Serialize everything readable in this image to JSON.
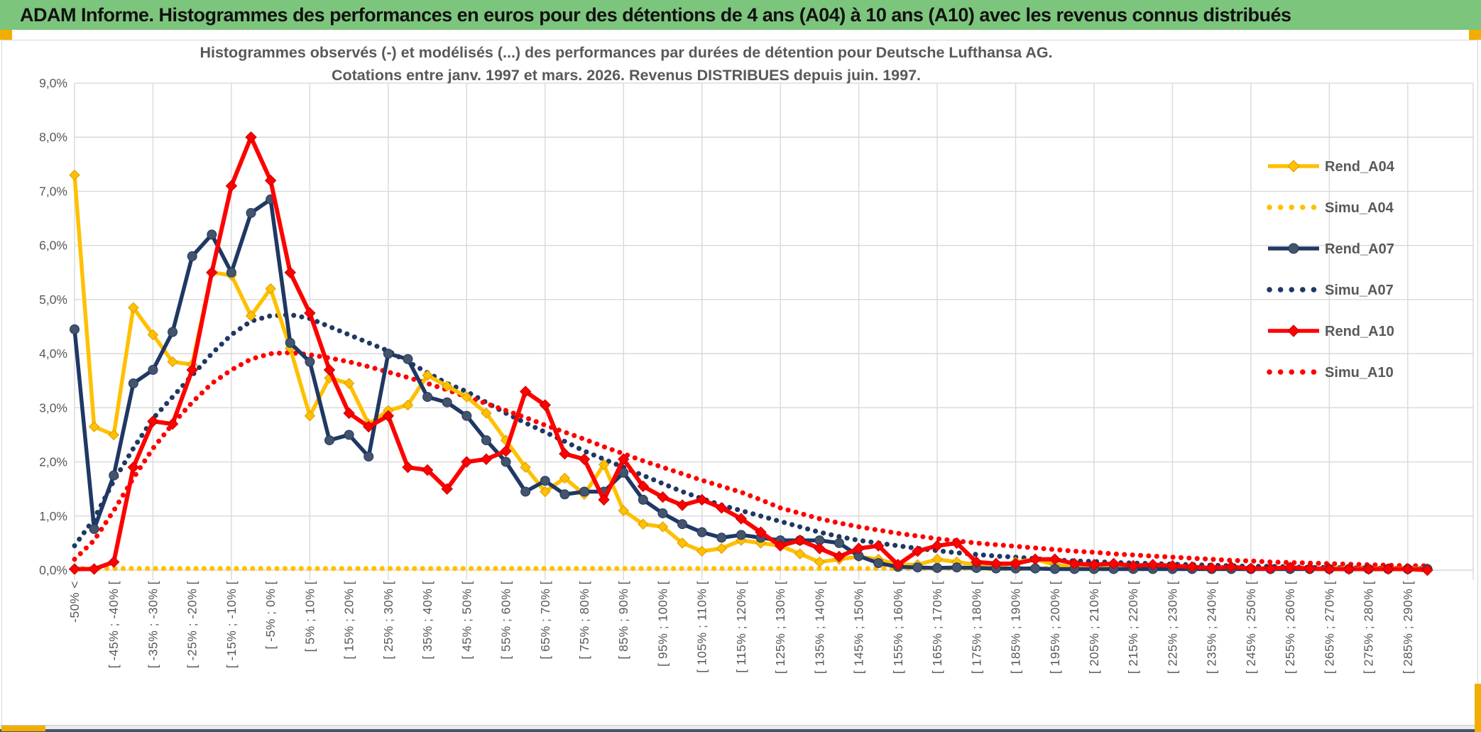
{
  "window": {
    "title": "ADAM Informe. Histogrammes des performances en euros pour des détentions de 4 ans (A04) à 10 ans (A10) avec les revenus connus distribués",
    "header_color": "#7CC57C",
    "accent_gold": "#F2AE00",
    "footer_color": "#44546A"
  },
  "chart_data": {
    "type": "line",
    "title_line1": "Histogrammes observés (-) et modélisés (...) des performances par durées de détention pour Deutsche Lufthansa AG.",
    "title_line2": "Cotations entre janv. 1997 et mars. 2026. Revenus DISTRIBUES depuis juin. 1997.",
    "ylabel": "",
    "xlabel": "",
    "ylim": [
      0,
      9
    ],
    "grid": true,
    "legend_position": "right",
    "y_ticks": [
      "0,0%",
      "1,0%",
      "2,0%",
      "3,0%",
      "4,0%",
      "5,0%",
      "6,0%",
      "7,0%",
      "8,0%",
      "9,0%"
    ],
    "x_tick_labels": [
      "-50% <",
      "[ -45% ; -40% [",
      "[ -35% ; -30% [",
      "[ -25% ; -20% [",
      "[ -15% ; -10% [",
      "[ -5% ; 0% [",
      "[ 5% ; 10% [",
      "[ 15% ; 20% [",
      "[ 25% ; 30% [",
      "[ 35% ; 40% [",
      "[ 45% ; 50% [",
      "[ 55% ; 60% [",
      "[ 65% ; 70% [",
      "[ 75% ; 80% [",
      "[ 85% ; 90% [",
      "[ 95% ; 100% [",
      "[ 105% ; 110% [",
      "[ 115% ; 120% [",
      "[ 125% ; 130% [",
      "[ 135% ; 140% [",
      "[ 145% ; 150% [",
      "[ 155% ; 160% [",
      "[ 165% ; 170% [",
      "[ 175% ; 180% [",
      "[ 185% ; 190% [",
      "[ 195% ; 200% [",
      "[ 205% ; 210% [",
      "[ 215% ; 220% [",
      "[ 225% ; 230% [",
      "[ 235% ; 240% [",
      "[ 245% ; 250% [",
      "[ 255% ; 260% [",
      "[ 265% ; 270% [",
      "[ 275% ; 280% [",
      "[ 285% ; 290% ["
    ],
    "x_tick_step": 2,
    "grid_color": "#D9D9D9",
    "text_color": "#595959",
    "series": [
      {
        "name": "Rend_A04",
        "color": "#FFC000",
        "style": "solid",
        "marker": "diamond",
        "marker_fill": "#FFC000",
        "marker_stroke": "#DA9B00",
        "values": [
          7.3,
          2.65,
          2.5,
          4.85,
          4.35,
          3.85,
          3.8,
          5.5,
          5.45,
          4.7,
          5.2,
          4.1,
          2.85,
          3.55,
          3.45,
          2.7,
          2.95,
          3.05,
          3.6,
          3.4,
          3.2,
          2.9,
          2.4,
          1.9,
          1.45,
          1.7,
          1.4,
          1.95,
          1.1,
          0.85,
          0.8,
          0.5,
          0.35,
          0.4,
          0.55,
          0.5,
          0.45,
          0.3,
          0.15,
          0.2,
          0.25,
          0.2,
          0.1,
          0.1,
          0.2,
          0.15,
          0.1,
          0.05,
          0.15,
          0.2,
          0.1,
          0.05,
          0.05,
          0.05,
          0.05,
          0.05,
          0.03,
          0.03,
          0.03,
          0.03,
          0.03,
          0.03,
          0.03,
          0.03,
          0.03,
          0.03,
          0.03,
          0.03,
          0.03,
          0.03
        ]
      },
      {
        "name": "Simu_A04",
        "color": "#FFC000",
        "style": "dotted",
        "marker": "none",
        "values": [
          0.03,
          0.03,
          0.03,
          0.03,
          0.03,
          0.03,
          0.03,
          0.03,
          0.03,
          0.03,
          0.03,
          0.03,
          0.03,
          0.03,
          0.03,
          0.03,
          0.03,
          0.03,
          0.03,
          0.03,
          0.03,
          0.03,
          0.03,
          0.03,
          0.03,
          0.03,
          0.03,
          0.03,
          0.03,
          0.03,
          0.03,
          0.03,
          0.03,
          0.03,
          0.03,
          0.03,
          0.03,
          0.03,
          0.03,
          0.03,
          0.03,
          0.03,
          0.03,
          0.03,
          0.03,
          0.03,
          0.03,
          0.03,
          0.03,
          0.03,
          0.03,
          0.03,
          0.03,
          0.03,
          0.03,
          0.03,
          0.03,
          0.03,
          0.03,
          0.03,
          0.03,
          0.03,
          0.03,
          0.03,
          0.03,
          0.03,
          0.03,
          0.03,
          0.03,
          0.03
        ]
      },
      {
        "name": "Rend_A07",
        "color": "#1F3864",
        "style": "solid",
        "marker": "circle",
        "marker_fill": "#44546A",
        "marker_stroke": "#1F3864",
        "values": [
          4.45,
          0.76,
          1.75,
          3.45,
          3.7,
          4.4,
          5.8,
          6.2,
          5.5,
          6.6,
          6.85,
          4.2,
          3.85,
          2.4,
          2.5,
          2.1,
          4.0,
          3.9,
          3.2,
          3.1,
          2.85,
          2.4,
          2.0,
          1.45,
          1.65,
          1.4,
          1.45,
          1.45,
          1.8,
          1.3,
          1.05,
          0.85,
          0.7,
          0.6,
          0.65,
          0.6,
          0.55,
          0.55,
          0.55,
          0.5,
          0.26,
          0.13,
          0.06,
          0.05,
          0.04,
          0.05,
          0.04,
          0.03,
          0.03,
          0.03,
          0.02,
          0.02,
          0.02,
          0.02,
          0.02,
          0.02,
          0.02,
          0.02,
          0.02,
          0.02,
          0.02,
          0.02,
          0.02,
          0.02,
          0.02,
          0.02,
          0.02,
          0.02,
          0.02,
          0.02
        ]
      },
      {
        "name": "Simu_A07",
        "color": "#1F3864",
        "style": "dotted",
        "marker": "none",
        "values": [
          0.45,
          0.95,
          1.65,
          2.25,
          2.8,
          3.2,
          3.6,
          4.0,
          4.35,
          4.6,
          4.7,
          4.72,
          4.65,
          4.5,
          4.35,
          4.2,
          4.05,
          3.85,
          3.65,
          3.45,
          3.3,
          3.1,
          2.9,
          2.72,
          2.55,
          2.38,
          2.2,
          2.05,
          1.9,
          1.75,
          1.6,
          1.45,
          1.32,
          1.2,
          1.1,
          1.0,
          0.9,
          0.8,
          0.7,
          0.62,
          0.55,
          0.5,
          0.45,
          0.4,
          0.36,
          0.32,
          0.29,
          0.26,
          0.24,
          0.21,
          0.19,
          0.17,
          0.16,
          0.14,
          0.13,
          0.12,
          0.11,
          0.1,
          0.09,
          0.08,
          0.07,
          0.07,
          0.06,
          0.05,
          0.05,
          0.04,
          0.04,
          0.03,
          0.03,
          0.03
        ]
      },
      {
        "name": "Rend_A10",
        "color": "#FF0000",
        "style": "solid",
        "marker": "diamond",
        "marker_fill": "#FF0000",
        "marker_stroke": "#C00000",
        "values": [
          0.02,
          0.02,
          0.15,
          1.9,
          2.75,
          2.7,
          3.7,
          5.5,
          7.1,
          8.0,
          7.2,
          5.5,
          4.75,
          3.7,
          2.9,
          2.65,
          2.85,
          1.9,
          1.85,
          1.5,
          2.0,
          2.05,
          2.2,
          3.3,
          3.05,
          2.15,
          2.05,
          1.3,
          2.05,
          1.55,
          1.35,
          1.2,
          1.3,
          1.15,
          0.95,
          0.7,
          0.45,
          0.55,
          0.4,
          0.25,
          0.4,
          0.45,
          0.1,
          0.35,
          0.45,
          0.5,
          0.15,
          0.12,
          0.12,
          0.2,
          0.2,
          0.12,
          0.1,
          0.12,
          0.08,
          0.1,
          0.08,
          0.06,
          0.04,
          0.06,
          0.03,
          0.03,
          0.05,
          0.03,
          0.02,
          0.02,
          0.02,
          0.02,
          0.02,
          0.0
        ]
      },
      {
        "name": "Simu_A10",
        "color": "#FF0000",
        "style": "dotted",
        "marker": "none",
        "values": [
          0.2,
          0.55,
          1.1,
          1.7,
          2.25,
          2.7,
          3.1,
          3.45,
          3.7,
          3.9,
          4.0,
          4.02,
          3.98,
          3.92,
          3.85,
          3.76,
          3.66,
          3.56,
          3.45,
          3.33,
          3.2,
          3.08,
          2.95,
          2.82,
          2.68,
          2.55,
          2.42,
          2.28,
          2.15,
          2.02,
          1.9,
          1.78,
          1.66,
          1.55,
          1.44,
          1.3,
          1.15,
          1.05,
          0.95,
          0.87,
          0.8,
          0.74,
          0.68,
          0.63,
          0.58,
          0.54,
          0.5,
          0.47,
          0.44,
          0.41,
          0.38,
          0.35,
          0.33,
          0.3,
          0.28,
          0.26,
          0.24,
          0.22,
          0.2,
          0.18,
          0.17,
          0.15,
          0.14,
          0.13,
          0.12,
          0.11,
          0.1,
          0.09,
          0.08,
          0.08
        ]
      }
    ]
  }
}
